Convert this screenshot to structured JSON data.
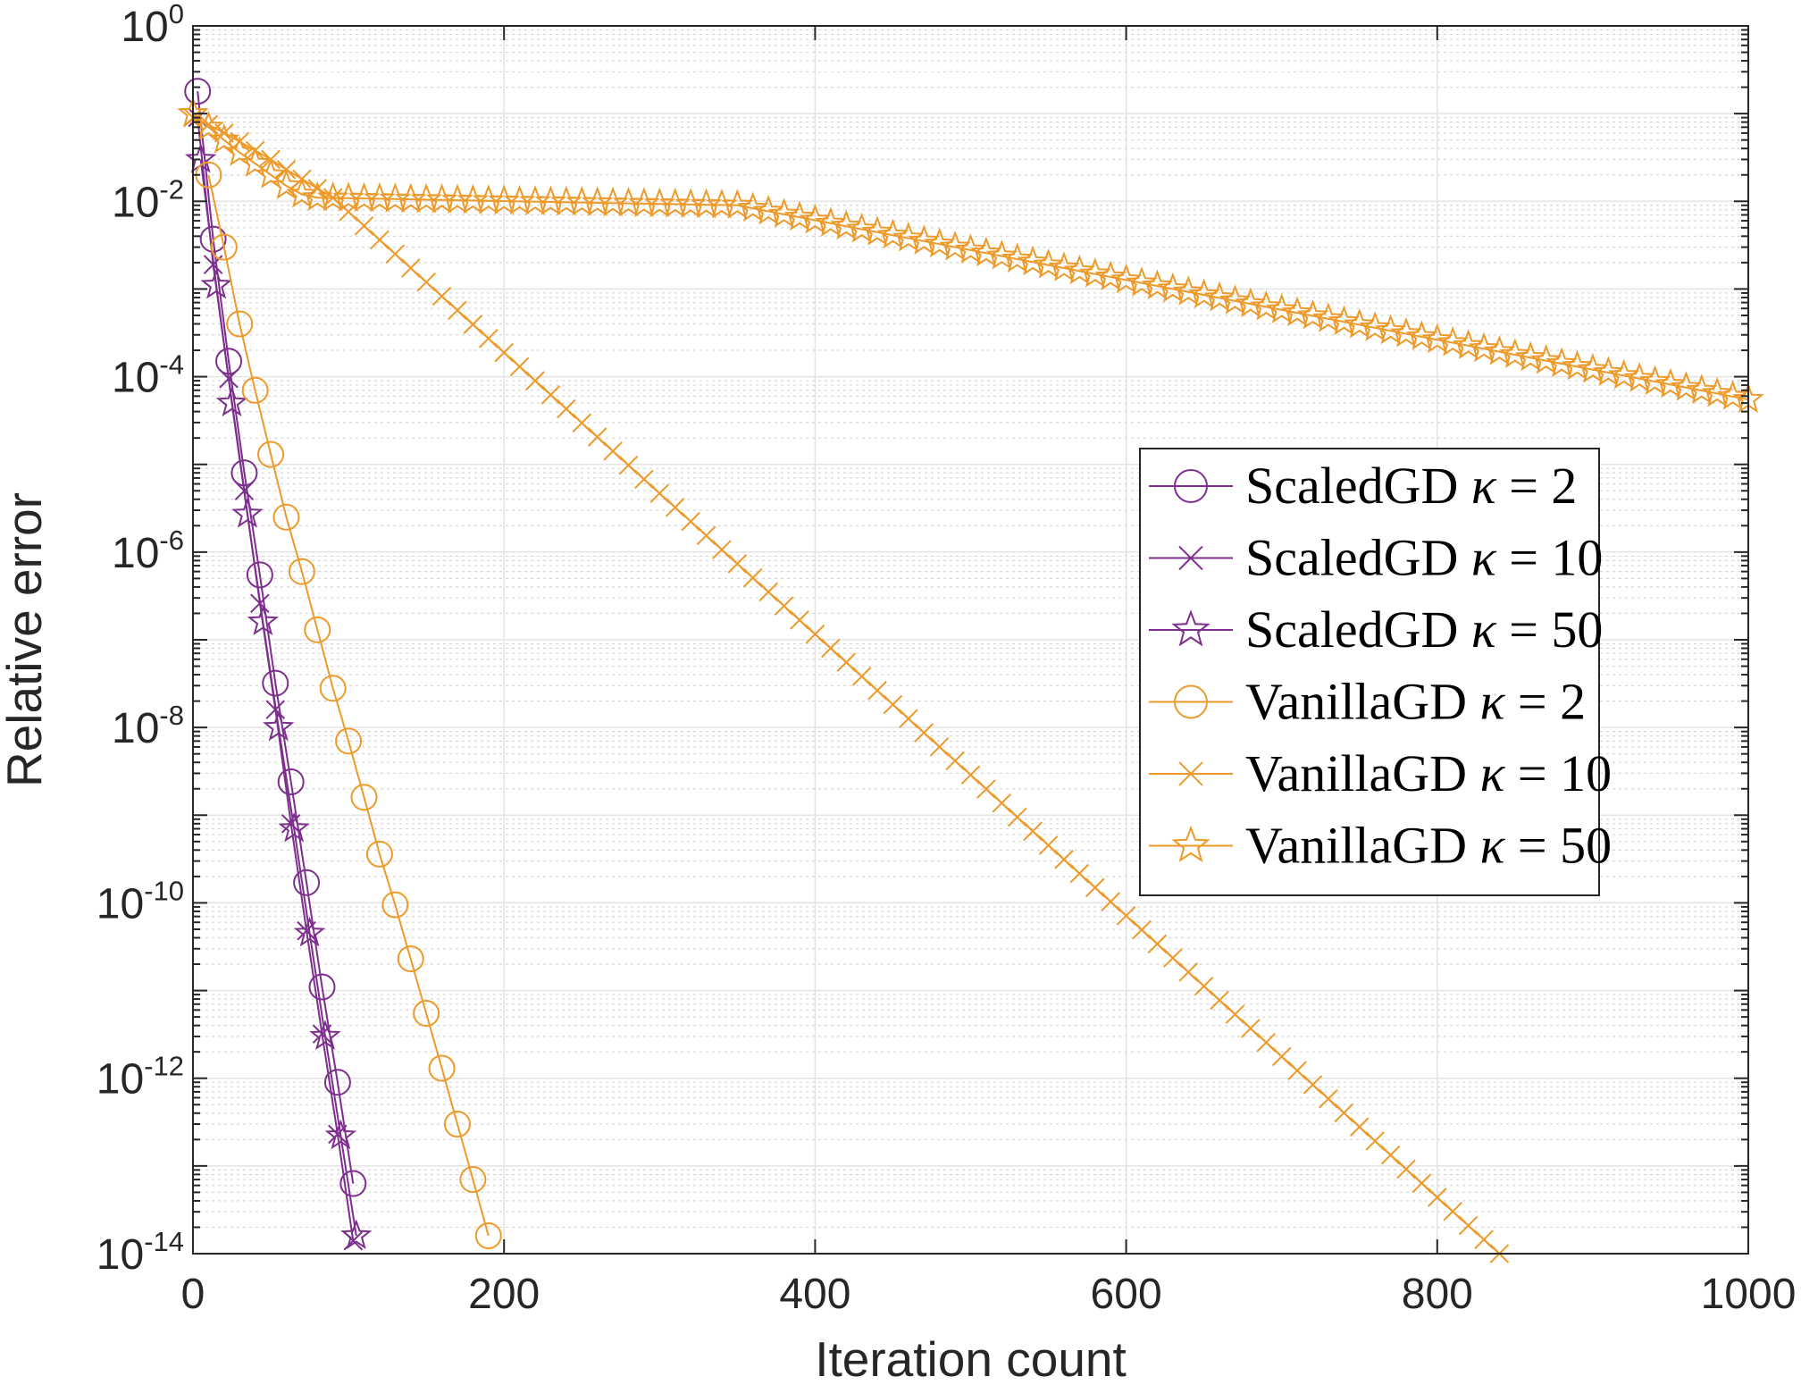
{
  "chart_data": {
    "type": "line",
    "xlabel": "Iteration count",
    "ylabel": "Relative error",
    "xlim": [
      0,
      1000
    ],
    "ylim_exponents": [
      -14,
      0
    ],
    "y_scale": "log",
    "grid": true,
    "legend_placement": "center-right",
    "x_ticks": [
      0,
      200,
      400,
      600,
      800,
      1000
    ],
    "y_tick_base": "10",
    "y_tick_exponents": [
      "0",
      "-2",
      "-4",
      "-6",
      "-8",
      "-10",
      "-12",
      "-14"
    ],
    "colors": {
      "scaled": "#7e2f8e",
      "vanilla": "#ed9a2a"
    },
    "series": [
      {
        "name": "ScaledGD",
        "kappa": "2",
        "color": "#7e2f8e",
        "marker": "circle",
        "x": [
          3,
          13,
          23,
          33,
          43,
          53,
          63,
          73,
          83,
          93,
          103
        ],
        "y": [
          0.18,
          0.0037,
          0.00015,
          8e-06,
          5.5e-07,
          3.2e-08,
          2.4e-09,
          1.7e-10,
          1.1e-11,
          9e-13,
          6.3e-14
        ]
      },
      {
        "name": "ScaledGD",
        "kappa": "10",
        "color": "#7e2f8e",
        "marker": "x",
        "x": [
          3,
          13,
          23,
          33,
          43,
          53,
          63,
          73,
          83,
          93,
          103
        ],
        "y": [
          0.09,
          0.0019,
          9.5e-05,
          5e-06,
          2.6e-07,
          1.6e-08,
          8e-10,
          4.8e-11,
          3.2e-12,
          2.3e-13,
          1.4e-14
        ]
      },
      {
        "name": "ScaledGD",
        "kappa": "50",
        "color": "#7e2f8e",
        "marker": "star",
        "x": [
          5,
          15,
          25,
          35,
          45,
          55,
          65,
          75,
          85,
          95,
          105
        ],
        "y": [
          0.03,
          0.0011,
          5e-05,
          2.7e-06,
          1.6e-07,
          1e-08,
          7e-10,
          4.5e-11,
          3e-12,
          2.2e-13,
          1.6e-14
        ]
      },
      {
        "name": "VanillaGD",
        "kappa": "2",
        "color": "#ed9a2a",
        "marker": "circle",
        "x": [
          10,
          20,
          30,
          40,
          50,
          60,
          70,
          80,
          90,
          100,
          110,
          120,
          130,
          140,
          150,
          160,
          170,
          180,
          190
        ],
        "y": [
          0.02,
          0.003,
          0.0004,
          7e-05,
          1.3e-05,
          2.5e-06,
          6e-07,
          1.3e-07,
          2.8e-08,
          7e-09,
          1.6e-09,
          3.6e-10,
          9.5e-11,
          2.3e-11,
          5.5e-12,
          1.3e-12,
          3e-13,
          7e-14,
          1.6e-14
        ]
      },
      {
        "name": "VanillaGD",
        "kappa": "10",
        "color": "#ed9a2a",
        "marker": "x",
        "x": [
          0,
          10,
          20,
          30,
          40,
          50,
          60,
          70,
          80,
          90,
          840
        ],
        "y": [
          0.09,
          0.075,
          0.06,
          0.048,
          0.038,
          0.03,
          0.023,
          0.018,
          0.014,
          0.011,
          1e-14
        ]
      },
      {
        "name": "VanillaGD",
        "kappa": "50",
        "color": "#ed9a2a",
        "marker": "star",
        "x": [
          0,
          10,
          20,
          30,
          40,
          50,
          60,
          70,
          80,
          350,
          1000
        ],
        "y": [
          0.1,
          0.07,
          0.05,
          0.036,
          0.027,
          0.02,
          0.015,
          0.012,
          0.011,
          0.009,
          5.5e-05
        ]
      }
    ],
    "legend_entries": [
      {
        "method": "ScaledGD",
        "kappa_symbol": "κ",
        "eq": "=",
        "value": "2"
      },
      {
        "method": "ScaledGD",
        "kappa_symbol": "κ",
        "eq": "=",
        "value": "10"
      },
      {
        "method": "ScaledGD",
        "kappa_symbol": "κ",
        "eq": "=",
        "value": "50"
      },
      {
        "method": "VanillaGD",
        "kappa_symbol": "κ",
        "eq": "=",
        "value": "2"
      },
      {
        "method": "VanillaGD",
        "kappa_symbol": "κ",
        "eq": "=",
        "value": "10"
      },
      {
        "method": "VanillaGD",
        "kappa_symbol": "κ",
        "eq": "=",
        "value": "50"
      }
    ]
  }
}
